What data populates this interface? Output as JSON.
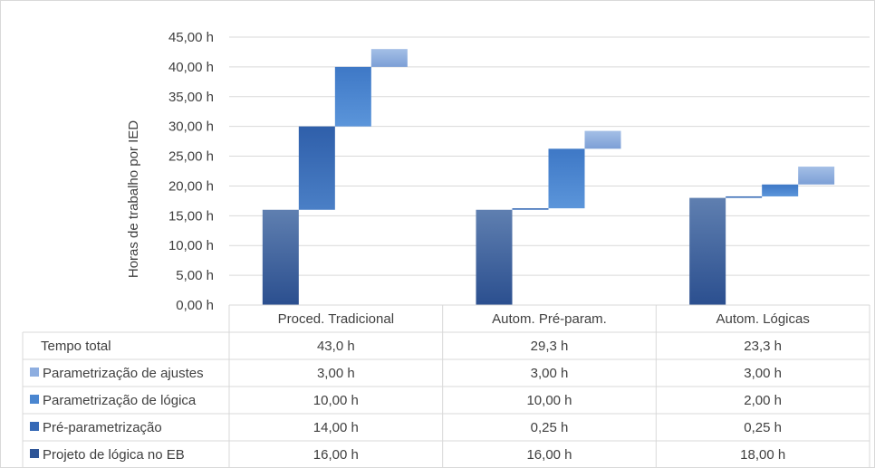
{
  "chart_data": {
    "type": "bar",
    "ylabel": "Horas de trabalho por IED",
    "ylim": [
      0,
      45
    ],
    "yticks": [
      "0,00 h",
      "5,00 h",
      "10,00 h",
      "15,00 h",
      "20,00 h",
      "25,00 h",
      "30,00 h",
      "35,00 h",
      "40,00 h",
      "45,00 h"
    ],
    "grid": true,
    "categories": [
      "Proced. Tradicional",
      "Autom. Pré-param.",
      "Autom. Lógicas"
    ],
    "series": [
      {
        "name": "Projeto de lógica no EB",
        "color": "#2e5597",
        "values": [
          16,
          16,
          18
        ],
        "labels": [
          "16,00 h",
          "16,00 h",
          "18,00 h"
        ]
      },
      {
        "name": "Pré-parametrização",
        "color": "#3669b6",
        "values": [
          14,
          0.25,
          0.25
        ],
        "labels": [
          "14,00 h",
          "0,25 h",
          "0,25 h"
        ]
      },
      {
        "name": "Parametrização de lógica",
        "color": "#4a86d0",
        "values": [
          10,
          10,
          2
        ],
        "labels": [
          "10,00 h",
          "10,00 h",
          "2,00 h"
        ]
      },
      {
        "name": "Parametrização de ajustes",
        "color": "#8eaee0",
        "values": [
          3,
          3,
          3
        ],
        "labels": [
          "3,00 h",
          "3,00 h",
          "3,00 h"
        ]
      }
    ],
    "total": {
      "name": "Tempo total",
      "values": [
        43.0,
        29.3,
        23.3
      ],
      "labels": [
        "43,0 h",
        "29,3 h",
        "23,3 h"
      ]
    }
  }
}
